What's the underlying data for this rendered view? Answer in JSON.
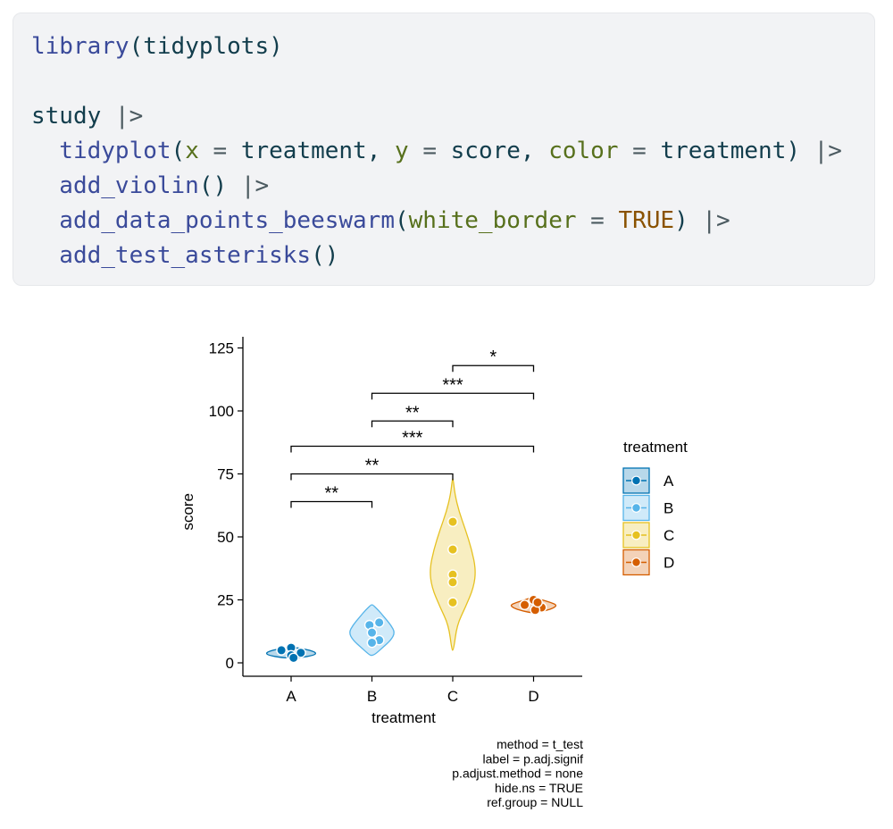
{
  "code": {
    "lines": [
      [
        {
          "t": "library",
          "c": "fn"
        },
        {
          "t": "(tidyplots)",
          "c": "plain"
        }
      ],
      [],
      [
        {
          "t": "study ",
          "c": "plain"
        },
        {
          "t": "|>",
          "c": "op"
        }
      ],
      [
        {
          "t": "  tidyplot",
          "c": "fn"
        },
        {
          "t": "(",
          "c": "plain"
        },
        {
          "t": "x",
          "c": "arg"
        },
        {
          "t": " = ",
          "c": "op"
        },
        {
          "t": "treatment, ",
          "c": "plain"
        },
        {
          "t": "y",
          "c": "arg"
        },
        {
          "t": " = ",
          "c": "op"
        },
        {
          "t": "score, ",
          "c": "plain"
        },
        {
          "t": "color",
          "c": "arg"
        },
        {
          "t": " = ",
          "c": "op"
        },
        {
          "t": "treatment) ",
          "c": "plain"
        },
        {
          "t": "|>",
          "c": "op"
        }
      ],
      [
        {
          "t": "  add_violin",
          "c": "fn"
        },
        {
          "t": "() ",
          "c": "plain"
        },
        {
          "t": "|>",
          "c": "op"
        }
      ],
      [
        {
          "t": "  add_data_points_beeswarm",
          "c": "fn"
        },
        {
          "t": "(",
          "c": "plain"
        },
        {
          "t": "white_border",
          "c": "arg"
        },
        {
          "t": " = ",
          "c": "op"
        },
        {
          "t": "TRUE",
          "c": "bool"
        },
        {
          "t": ") ",
          "c": "plain"
        },
        {
          "t": "|>",
          "c": "op"
        }
      ],
      [
        {
          "t": "  add_test_asterisks",
          "c": "fn"
        },
        {
          "t": "()",
          "c": "plain"
        }
      ]
    ]
  },
  "chart_data": {
    "type": "violin",
    "categories": [
      "A",
      "B",
      "C",
      "D"
    ],
    "xlabel": "treatment",
    "ylabel": "score",
    "ylim": [
      -5,
      130
    ],
    "yticks": [
      0,
      25,
      50,
      75,
      100,
      125
    ],
    "colors": {
      "A": "#0072b2",
      "B": "#56b4e9",
      "C": "#e6c121",
      "D": "#d55e00"
    },
    "violins": [
      {
        "group": "A",
        "min": 2,
        "max": 6,
        "profile": [
          [
            2,
            0.2
          ],
          [
            3,
            0.55
          ],
          [
            4,
            0.6
          ],
          [
            5,
            0.45
          ],
          [
            6,
            0.15
          ]
        ]
      },
      {
        "group": "B",
        "min": 3,
        "max": 23,
        "profile": [
          [
            3,
            0.05
          ],
          [
            6,
            0.25
          ],
          [
            9,
            0.45
          ],
          [
            12,
            0.55
          ],
          [
            15,
            0.45
          ],
          [
            18,
            0.3
          ],
          [
            21,
            0.15
          ],
          [
            23,
            0.02
          ]
        ]
      },
      {
        "group": "C",
        "min": 5,
        "max": 73,
        "profile": [
          [
            5,
            0.02
          ],
          [
            15,
            0.1
          ],
          [
            22,
            0.3
          ],
          [
            30,
            0.5
          ],
          [
            37,
            0.55
          ],
          [
            45,
            0.45
          ],
          [
            53,
            0.3
          ],
          [
            60,
            0.15
          ],
          [
            67,
            0.05
          ],
          [
            73,
            0.01
          ]
        ]
      },
      {
        "group": "D",
        "min": 20,
        "max": 26,
        "profile": [
          [
            20,
            0.1
          ],
          [
            21,
            0.35
          ],
          [
            22,
            0.5
          ],
          [
            23,
            0.55
          ],
          [
            24,
            0.4
          ],
          [
            25,
            0.2
          ],
          [
            26,
            0.05
          ]
        ]
      }
    ],
    "points": [
      {
        "group": "A",
        "y": 6,
        "dx": 0
      },
      {
        "group": "A",
        "y": 5,
        "dx": -0.12
      },
      {
        "group": "A",
        "y": 4,
        "dx": 0.12
      },
      {
        "group": "A",
        "y": 3,
        "dx": 0
      },
      {
        "group": "A",
        "y": 2,
        "dx": 0.03
      },
      {
        "group": "B",
        "y": 16,
        "dx": 0.09
      },
      {
        "group": "B",
        "y": 15,
        "dx": -0.03
      },
      {
        "group": "B",
        "y": 12,
        "dx": 0
      },
      {
        "group": "B",
        "y": 9,
        "dx": 0.09
      },
      {
        "group": "B",
        "y": 8,
        "dx": 0
      },
      {
        "group": "C",
        "y": 56,
        "dx": 0
      },
      {
        "group": "C",
        "y": 45,
        "dx": 0
      },
      {
        "group": "C",
        "y": 35,
        "dx": 0
      },
      {
        "group": "C",
        "y": 32,
        "dx": 0
      },
      {
        "group": "C",
        "y": 24,
        "dx": 0
      },
      {
        "group": "D",
        "y": 25,
        "dx": 0
      },
      {
        "group": "D",
        "y": 23,
        "dx": -0.11
      },
      {
        "group": "D",
        "y": 22,
        "dx": 0.1
      },
      {
        "group": "D",
        "y": 21,
        "dx": 0.02
      },
      {
        "group": "D",
        "y": 24,
        "dx": 0.05
      }
    ],
    "comparisons": [
      {
        "from": "A",
        "to": "B",
        "y": 64,
        "label": "**"
      },
      {
        "from": "A",
        "to": "C",
        "y": 75,
        "label": "**"
      },
      {
        "from": "A",
        "to": "D",
        "y": 86,
        "label": "***"
      },
      {
        "from": "B",
        "to": "C",
        "y": 96,
        "label": "**"
      },
      {
        "from": "B",
        "to": "D",
        "y": 107,
        "label": "***"
      },
      {
        "from": "C",
        "to": "D",
        "y": 118,
        "label": "*"
      }
    ],
    "legend": {
      "title": "treatment",
      "entries": [
        "A",
        "B",
        "C",
        "D"
      ],
      "placement": "right"
    },
    "caption": [
      "method = t_test",
      "label = p.adj.signif",
      "p.adjust.method = none",
      "hide.ns = TRUE",
      "ref.group = NULL"
    ]
  }
}
